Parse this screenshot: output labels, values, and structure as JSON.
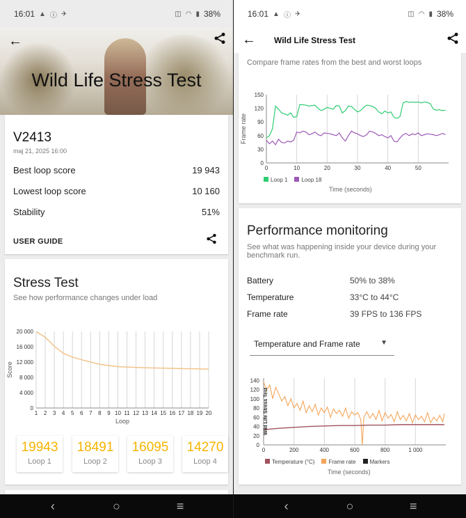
{
  "status": {
    "time": "16:01",
    "battery": "38%"
  },
  "left": {
    "hero_title": "Wild Life Stress Test",
    "device": {
      "name": "V2413",
      "date": "maj 21, 2025 16:00"
    },
    "scores": [
      {
        "label": "Best loop score",
        "value": "19 943"
      },
      {
        "label": "Lowest loop score",
        "value": "10 160"
      },
      {
        "label": "Stability",
        "value": "51%"
      }
    ],
    "user_guide": "USER GUIDE",
    "stress": {
      "title": "Stress Test",
      "subtitle": "See how performance changes under load"
    },
    "loops": [
      {
        "value": "19943",
        "label": "Loop 1"
      },
      {
        "value": "18491",
        "label": "Loop 2"
      },
      {
        "value": "16095",
        "label": "Loop 3"
      },
      {
        "value": "14270",
        "label": "Loop 4"
      }
    ]
  },
  "right": {
    "header_title": "Wild Life Stress Test",
    "compare_subtitle": "Compare frame rates from the best and worst loops",
    "perf": {
      "title": "Performance monitoring",
      "subtitle": "See what was happening inside your device during your benchmark run.",
      "rows": [
        {
          "label": "Battery",
          "value": "50% to 38%"
        },
        {
          "label": "Temperature",
          "value": "33°C to 44°C"
        },
        {
          "label": "Frame rate",
          "value": "39 FPS to 136 FPS"
        }
      ],
      "dropdown": "Temperature and Frame rate"
    }
  },
  "chart_data": [
    {
      "type": "line",
      "xlabel": "Loop",
      "ylabel": "Score",
      "x": [
        1,
        2,
        3,
        4,
        5,
        6,
        7,
        8,
        9,
        10,
        11,
        12,
        13,
        14,
        15,
        16,
        17,
        18,
        19,
        20
      ],
      "y_ticks": [
        "0",
        "4 000",
        "8 000",
        "12 000",
        "16 000",
        "20 000"
      ],
      "x_ticks": [
        "1",
        "2",
        "3",
        "4",
        "5",
        "6",
        "7",
        "8",
        "9",
        "10",
        "11",
        "12",
        "13",
        "14",
        "15",
        "16",
        "17",
        "18",
        "19",
        "20"
      ],
      "ylim": [
        0,
        20000
      ],
      "series": [
        {
          "values": [
            19943,
            18491,
            16095,
            14270,
            13300,
            12600,
            12000,
            11400,
            11100,
            10800,
            10700,
            10600,
            10500,
            10450,
            10400,
            10350,
            10300,
            10250,
            10200,
            10160
          ],
          "color": "#f2c38a"
        }
      ]
    },
    {
      "type": "line",
      "xlabel": "Time (seconds)",
      "ylabel": "Frame rate",
      "y_ticks": [
        "0",
        "30",
        "60",
        "90",
        "120",
        "150"
      ],
      "x_ticks": [
        "0",
        "10",
        "20",
        "30",
        "40",
        "50"
      ],
      "ylim": [
        0,
        150
      ],
      "xlim": [
        0,
        60
      ],
      "series": [
        {
          "name": "Loop 1",
          "color": "#2ecc71",
          "x": [
            0,
            1,
            2,
            3,
            4,
            5,
            6,
            7,
            8,
            9,
            10,
            11,
            12,
            13,
            14,
            15,
            16,
            17,
            18,
            19,
            20,
            21,
            22,
            23,
            24,
            25,
            26,
            27,
            28,
            29,
            30,
            31,
            32,
            33,
            34,
            35,
            36,
            37,
            38,
            39,
            40,
            41,
            42,
            43,
            44,
            45,
            46,
            47,
            48,
            49,
            50,
            51,
            52,
            53,
            54,
            55,
            56,
            57,
            58,
            59
          ],
          "values": [
            55,
            60,
            75,
            125,
            118,
            110,
            108,
            105,
            110,
            100,
            102,
            128,
            128,
            127,
            125,
            126,
            127,
            120,
            115,
            118,
            122,
            120,
            118,
            126,
            125,
            110,
            115,
            125,
            124,
            118,
            112,
            115,
            122,
            127,
            126,
            124,
            120,
            112,
            108,
            114,
            110,
            112,
            100,
            98,
            102,
            132,
            135,
            133,
            134,
            133,
            134,
            132,
            134,
            133,
            130,
            118,
            116,
            117,
            115,
            116
          ]
        },
        {
          "name": "Loop 18",
          "color": "#9b59b6",
          "x": [
            0,
            1,
            2,
            3,
            4,
            5,
            6,
            7,
            8,
            9,
            10,
            11,
            12,
            13,
            14,
            15,
            16,
            17,
            18,
            19,
            20,
            21,
            22,
            23,
            24,
            25,
            26,
            27,
            28,
            29,
            30,
            31,
            32,
            33,
            34,
            35,
            36,
            37,
            38,
            39,
            40,
            41,
            42,
            43,
            44,
            45,
            46,
            47,
            48,
            49,
            50,
            51,
            52,
            53,
            54,
            55,
            56,
            57,
            58,
            59
          ],
          "values": [
            50,
            42,
            48,
            40,
            52,
            45,
            44,
            48,
            46,
            50,
            68,
            66,
            70,
            68,
            62,
            64,
            68,
            62,
            60,
            66,
            65,
            64,
            62,
            60,
            66,
            55,
            48,
            60,
            70,
            66,
            64,
            60,
            58,
            62,
            70,
            68,
            65,
            60,
            62,
            58,
            55,
            60,
            48,
            46,
            55,
            62,
            65,
            60,
            64,
            62,
            66,
            60,
            62,
            64,
            63,
            62,
            60,
            62,
            65,
            62
          ]
        }
      ]
    },
    {
      "type": "line",
      "xlabel": "Time (seconds)",
      "ylabel": "Wild Life Stress Test",
      "y_ticks": [
        "0",
        "20",
        "40",
        "60",
        "80",
        "100",
        "120",
        "140"
      ],
      "x_ticks": [
        "0",
        "200",
        "400",
        "600",
        "800",
        "1 000"
      ],
      "ylim": [
        0,
        145
      ],
      "xlim": [
        0,
        1200
      ],
      "legend": [
        "Temperature (°C)",
        "Frame rate",
        "Markers"
      ],
      "series": [
        {
          "name": "Temperature (°C)",
          "color": "#a0525e",
          "x": [
            0,
            100,
            200,
            300,
            400,
            500,
            600,
            700,
            800,
            900,
            1000,
            1100,
            1190
          ],
          "values": [
            33,
            36,
            38,
            40,
            41,
            42,
            42,
            43,
            43,
            44,
            44,
            44,
            44
          ]
        },
        {
          "name": "Frame rate",
          "color": "#f5a55a",
          "x": [
            0,
            20,
            40,
            60,
            80,
            100,
            120,
            140,
            160,
            180,
            200,
            220,
            240,
            260,
            280,
            300,
            320,
            340,
            360,
            380,
            400,
            420,
            440,
            460,
            480,
            500,
            520,
            540,
            560,
            580,
            600,
            620,
            640,
            650,
            660,
            680,
            700,
            720,
            740,
            760,
            780,
            800,
            820,
            840,
            860,
            880,
            900,
            920,
            940,
            960,
            980,
            1000,
            1020,
            1040,
            1060,
            1080,
            1100,
            1120,
            1140,
            1160,
            1180,
            1190
          ],
          "values": [
            136,
            120,
            130,
            100,
            125,
            110,
            95,
            105,
            85,
            100,
            80,
            90,
            75,
            95,
            70,
            85,
            72,
            88,
            65,
            80,
            70,
            82,
            60,
            78,
            68,
            75,
            62,
            80,
            58,
            72,
            65,
            70,
            55,
            0,
            60,
            72,
            58,
            68,
            55,
            75,
            52,
            70,
            58,
            66,
            50,
            72,
            55,
            64,
            52,
            68,
            48,
            65,
            55,
            62,
            50,
            70,
            48,
            60,
            52,
            64,
            50,
            68
          ]
        },
        {
          "name": "Markers",
          "color": "#222222",
          "x": [],
          "values": []
        }
      ]
    }
  ]
}
